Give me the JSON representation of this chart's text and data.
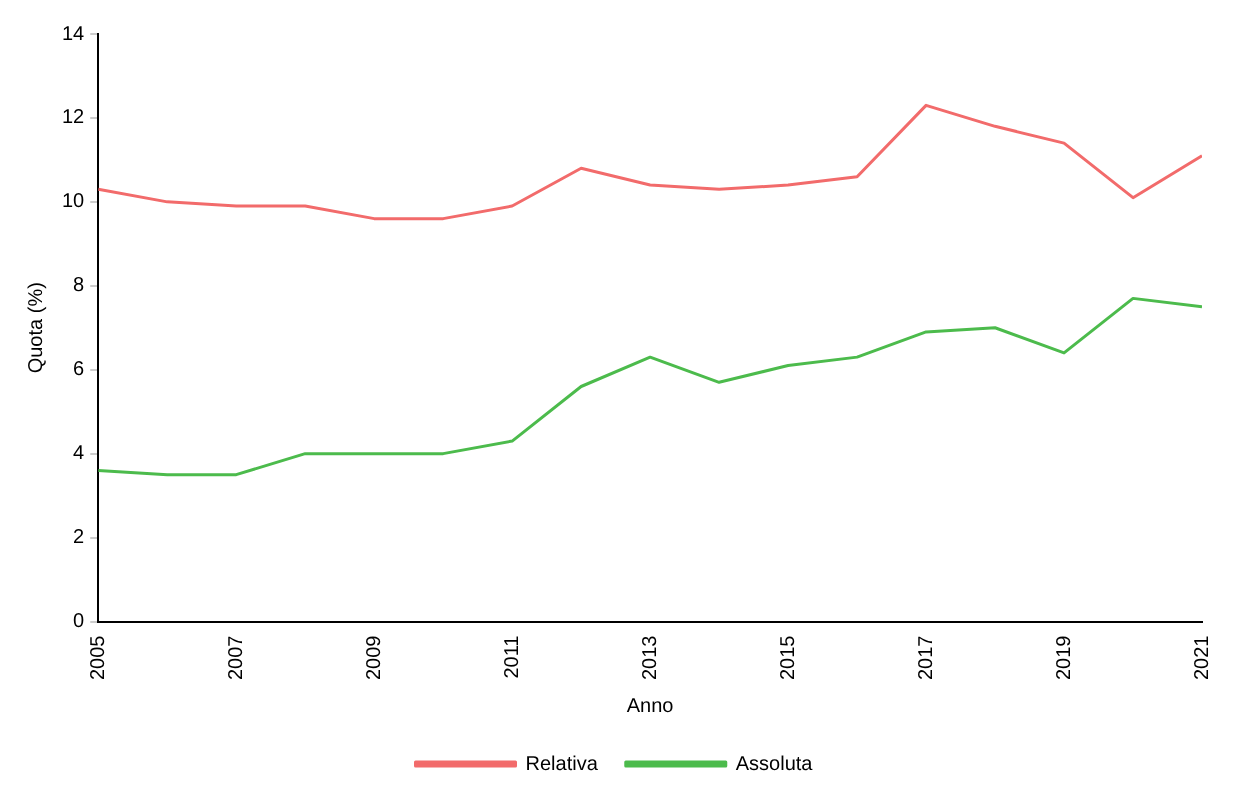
{
  "chart_data": {
    "type": "line",
    "xlabel": "Anno",
    "ylabel": "Quota (%)",
    "x": [
      2005,
      2006,
      2007,
      2008,
      2009,
      2010,
      2011,
      2012,
      2013,
      2014,
      2015,
      2016,
      2017,
      2018,
      2019,
      2020,
      2021
    ],
    "series": [
      {
        "name": "Relativa",
        "color": "#f26b6b",
        "values": [
          10.3,
          10.0,
          9.9,
          9.9,
          9.6,
          9.6,
          9.9,
          10.8,
          10.4,
          10.3,
          10.4,
          10.6,
          12.3,
          11.8,
          11.4,
          10.1,
          11.1
        ]
      },
      {
        "name": "Assoluta",
        "color": "#4cbb4c",
        "values": [
          3.6,
          3.5,
          3.5,
          4.0,
          4.0,
          4.0,
          4.3,
          5.6,
          6.3,
          5.7,
          6.1,
          6.3,
          6.9,
          7.0,
          6.4,
          7.7,
          7.5
        ]
      }
    ],
    "xlim": [
      2005,
      2021
    ],
    "xticks": [
      2005,
      2007,
      2009,
      2011,
      2013,
      2015,
      2017,
      2019,
      2021
    ],
    "ylim": [
      0,
      14
    ],
    "yticks": [
      0,
      2,
      4,
      6,
      8,
      10,
      12,
      14
    ],
    "grid": false,
    "legend": "bottom",
    "marker": "none",
    "line_style": "solid"
  }
}
